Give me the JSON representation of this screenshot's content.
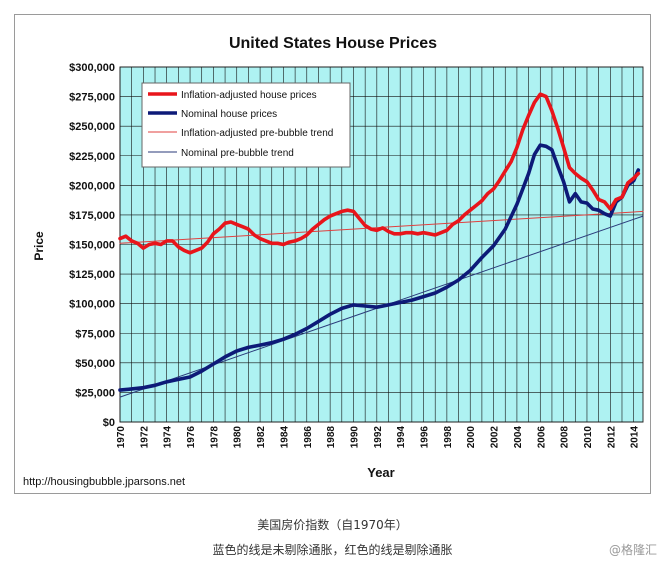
{
  "chart_data": {
    "type": "line",
    "title": "United States House Prices",
    "xlabel": "Year",
    "ylabel": "Price",
    "xlim": [
      1970,
      2014.8
    ],
    "ylim": [
      0,
      300000
    ],
    "x_ticks": [
      "1970",
      "1972",
      "1974",
      "1976",
      "1978",
      "1980",
      "1982",
      "1984",
      "1986",
      "1988",
      "1990",
      "1992",
      "1994",
      "1996",
      "1998",
      "2000",
      "2002",
      "2004",
      "2006",
      "2008",
      "2010",
      "2012",
      "2014"
    ],
    "y_ticks": [
      "$0",
      "$25,000",
      "$50,000",
      "$75,000",
      "$100,000",
      "$125,000",
      "$150,000",
      "$175,000",
      "$200,000",
      "$225,000",
      "$250,000",
      "$275,000",
      "$300,000"
    ],
    "source": "http://housingbubble.jparsons.net",
    "grid": true,
    "legend_position": "top-left",
    "series": [
      {
        "name": "Inflation-adjusted house prices",
        "color": "#e8151b",
        "style": "thick",
        "points": [
          [
            1970,
            155000
          ],
          [
            1970.5,
            157000
          ],
          [
            1971,
            153000
          ],
          [
            1971.5,
            151000
          ],
          [
            1972,
            147000
          ],
          [
            1972.5,
            150000
          ],
          [
            1973,
            151000
          ],
          [
            1973.5,
            150000
          ],
          [
            1974,
            153000
          ],
          [
            1974.5,
            153000
          ],
          [
            1975,
            148000
          ],
          [
            1975.5,
            145000
          ],
          [
            1976,
            143000
          ],
          [
            1976.5,
            145000
          ],
          [
            1977,
            147000
          ],
          [
            1977.5,
            152000
          ],
          [
            1978,
            159000
          ],
          [
            1978.5,
            163000
          ],
          [
            1979,
            168000
          ],
          [
            1979.5,
            169000
          ],
          [
            1980,
            167000
          ],
          [
            1980.5,
            165000
          ],
          [
            1981,
            163000
          ],
          [
            1981.5,
            158000
          ],
          [
            1982,
            155000
          ],
          [
            1982.5,
            153000
          ],
          [
            1983,
            151000
          ],
          [
            1983.5,
            151000
          ],
          [
            1984,
            150000
          ],
          [
            1984.5,
            152000
          ],
          [
            1985,
            153000
          ],
          [
            1985.5,
            155000
          ],
          [
            1986,
            158000
          ],
          [
            1986.5,
            163000
          ],
          [
            1987,
            167000
          ],
          [
            1987.5,
            171000
          ],
          [
            1988,
            174000
          ],
          [
            1988.5,
            176000
          ],
          [
            1989,
            178000
          ],
          [
            1989.5,
            179000
          ],
          [
            1990,
            178000
          ],
          [
            1990.5,
            172000
          ],
          [
            1991,
            166000
          ],
          [
            1991.5,
            163000
          ],
          [
            1992,
            162000
          ],
          [
            1992.5,
            164000
          ],
          [
            1993,
            161000
          ],
          [
            1993.5,
            159000
          ],
          [
            1994,
            159000
          ],
          [
            1994.5,
            160000
          ],
          [
            1995,
            160000
          ],
          [
            1995.5,
            159000
          ],
          [
            1996,
            160000
          ],
          [
            1996.5,
            159000
          ],
          [
            1997,
            158000
          ],
          [
            1997.5,
            160000
          ],
          [
            1998,
            162000
          ],
          [
            1998.5,
            167000
          ],
          [
            1999,
            170000
          ],
          [
            1999.5,
            175000
          ],
          [
            2000,
            179000
          ],
          [
            2000.5,
            183000
          ],
          [
            2001,
            187000
          ],
          [
            2001.5,
            193000
          ],
          [
            2002,
            197000
          ],
          [
            2002.5,
            204000
          ],
          [
            2003,
            212000
          ],
          [
            2003.5,
            220000
          ],
          [
            2004,
            232000
          ],
          [
            2004.5,
            247000
          ],
          [
            2005,
            259000
          ],
          [
            2005.5,
            270000
          ],
          [
            2006,
            277000
          ],
          [
            2006.5,
            275000
          ],
          [
            2007,
            263000
          ],
          [
            2007.5,
            248000
          ],
          [
            2008,
            232000
          ],
          [
            2008.5,
            215000
          ],
          [
            2009,
            210000
          ],
          [
            2009.5,
            206000
          ],
          [
            2010,
            203000
          ],
          [
            2010.5,
            196000
          ],
          [
            2011,
            188000
          ],
          [
            2011.5,
            186000
          ],
          [
            2012,
            180000
          ],
          [
            2012.5,
            188000
          ],
          [
            2013,
            190000
          ],
          [
            2013.5,
            202000
          ],
          [
            2014,
            206000
          ],
          [
            2014.4,
            210000
          ]
        ]
      },
      {
        "name": "Nominal house prices",
        "color": "#0d1a78",
        "style": "thick",
        "points": [
          [
            1970,
            27000
          ],
          [
            1971,
            28000
          ],
          [
            1972,
            29000
          ],
          [
            1973,
            31000
          ],
          [
            1974,
            34000
          ],
          [
            1975,
            36000
          ],
          [
            1976,
            38000
          ],
          [
            1977,
            43000
          ],
          [
            1978,
            49000
          ],
          [
            1979,
            55000
          ],
          [
            1980,
            60000
          ],
          [
            1981,
            63000
          ],
          [
            1982,
            65000
          ],
          [
            1983,
            67000
          ],
          [
            1984,
            70000
          ],
          [
            1985,
            74000
          ],
          [
            1986,
            79000
          ],
          [
            1987,
            85000
          ],
          [
            1988,
            91000
          ],
          [
            1989,
            96000
          ],
          [
            1990,
            99000
          ],
          [
            1991,
            98000
          ],
          [
            1992,
            97000
          ],
          [
            1993,
            99000
          ],
          [
            1994,
            101000
          ],
          [
            1995,
            103000
          ],
          [
            1996,
            106000
          ],
          [
            1997,
            109000
          ],
          [
            1998,
            114000
          ],
          [
            1999,
            120000
          ],
          [
            2000,
            128000
          ],
          [
            2001,
            139000
          ],
          [
            2002,
            149000
          ],
          [
            2003,
            163000
          ],
          [
            2004,
            184000
          ],
          [
            2004.5,
            197000
          ],
          [
            2005,
            210000
          ],
          [
            2005.5,
            226000
          ],
          [
            2006,
            234000
          ],
          [
            2006.5,
            233000
          ],
          [
            2007,
            230000
          ],
          [
            2007.5,
            216000
          ],
          [
            2008,
            203000
          ],
          [
            2008.5,
            186000
          ],
          [
            2009,
            193000
          ],
          [
            2009.5,
            186000
          ],
          [
            2010,
            185000
          ],
          [
            2010.5,
            180000
          ],
          [
            2011,
            179000
          ],
          [
            2011.5,
            176000
          ],
          [
            2012,
            174000
          ],
          [
            2012.5,
            186000
          ],
          [
            2013,
            190000
          ],
          [
            2013.5,
            200000
          ],
          [
            2014,
            204000
          ],
          [
            2014.4,
            213000
          ]
        ]
      },
      {
        "name": "Inflation-adjusted pre-bubble trend",
        "color": "#e0403f",
        "style": "thin",
        "points": [
          [
            1970,
            151000
          ],
          [
            2014.8,
            178000
          ]
        ]
      },
      {
        "name": "Nominal pre-bubble trend",
        "color": "#2a3a7a",
        "style": "thin",
        "points": [
          [
            1970,
            21000
          ],
          [
            2014.8,
            174000
          ]
        ]
      }
    ]
  },
  "captions": {
    "line1": "美国房价指数（自1970年）",
    "line2": "蓝色的线是未剔除通胀，红色的线是剔除通胀",
    "watermark": "@格隆汇"
  }
}
